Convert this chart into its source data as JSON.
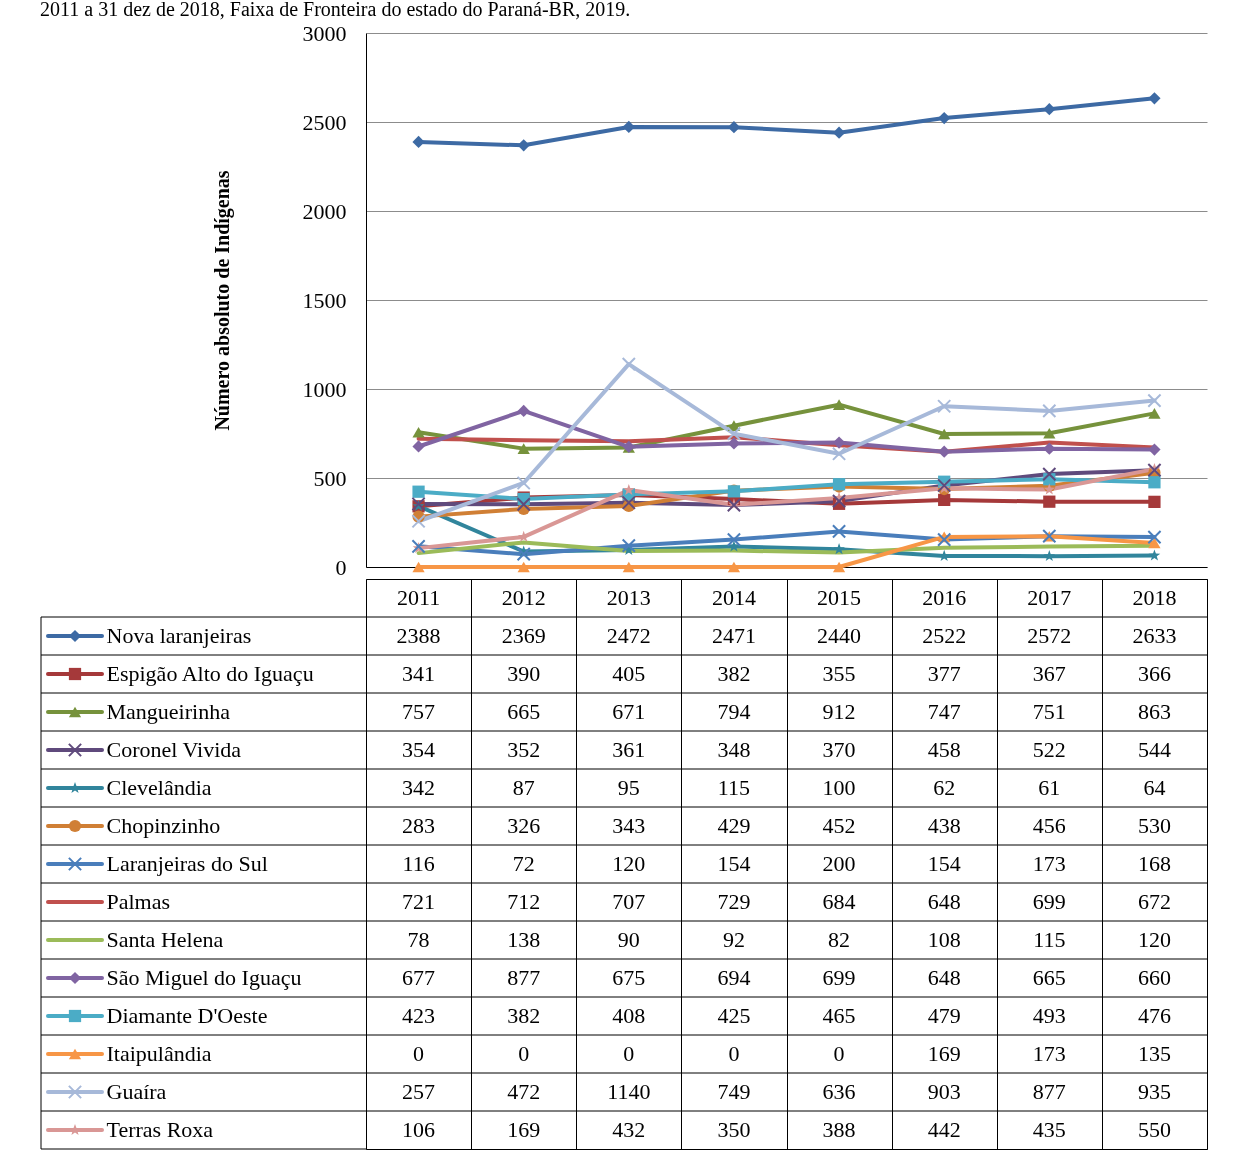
{
  "chart_data": {
    "type": "line",
    "title": "2011 a 31 dez de 2018, Faixa de Fronteira do estado do Paraná-BR, 2019.",
    "ylabel": "Número absoluto de Indígenas",
    "categories": [
      "2011",
      "2012",
      "2013",
      "2014",
      "2015",
      "2016",
      "2017",
      "2018"
    ],
    "ylim": [
      0,
      3000
    ],
    "yticks": [
      0,
      500,
      1000,
      1500,
      2000,
      2500,
      3000
    ],
    "grid": "y",
    "legend": "bottom",
    "data_labels": true,
    "series": [
      {
        "name": "Nova laranjeiras",
        "color": "#3d6aa4",
        "marker": "diamond",
        "values": [
          2388,
          2369,
          2472,
          2471,
          2440,
          2522,
          2572,
          2633
        ]
      },
      {
        "name": "Espigão Alto do Iguaçu",
        "color": "#a5393a",
        "marker": "square",
        "values": [
          341,
          390,
          405,
          382,
          355,
          377,
          367,
          366
        ]
      },
      {
        "name": "Mangueirinha",
        "color": "#76923c",
        "marker": "triangle",
        "values": [
          757,
          665,
          671,
          794,
          912,
          747,
          751,
          863
        ]
      },
      {
        "name": "Coronel Vivida",
        "color": "#5f4a7c",
        "marker": "cross",
        "values": [
          354,
          352,
          361,
          348,
          370,
          458,
          522,
          544
        ]
      },
      {
        "name": "Clevelândia",
        "color": "#31859c",
        "marker": "star",
        "values": [
          342,
          87,
          95,
          115,
          100,
          62,
          61,
          64
        ]
      },
      {
        "name": "Chopinzinho",
        "color": "#d07f35",
        "marker": "circle",
        "values": [
          283,
          326,
          343,
          429,
          452,
          438,
          456,
          530
        ]
      },
      {
        "name": "Laranjeiras do Sul",
        "color": "#4a7ebb",
        "marker": "cross",
        "values": [
          116,
          72,
          120,
          154,
          200,
          154,
          173,
          168
        ]
      },
      {
        "name": "Palmas",
        "color": "#c0504d",
        "marker": "none",
        "values": [
          721,
          712,
          707,
          729,
          684,
          648,
          699,
          672
        ]
      },
      {
        "name": "Santa Helena",
        "color": "#9bbb59",
        "marker": "none",
        "values": [
          78,
          138,
          90,
          92,
          82,
          108,
          115,
          120
        ]
      },
      {
        "name": "São Miguel do Iguaçu",
        "color": "#8064a2",
        "marker": "diamond",
        "values": [
          677,
          877,
          675,
          694,
          699,
          648,
          665,
          660
        ]
      },
      {
        "name": "Diamante D'Oeste",
        "color": "#4bacc6",
        "marker": "square",
        "values": [
          423,
          382,
          408,
          425,
          465,
          479,
          493,
          476
        ]
      },
      {
        "name": "Itaipulândia",
        "color": "#f79646",
        "marker": "triangle",
        "values": [
          0,
          0,
          0,
          0,
          0,
          169,
          173,
          135
        ]
      },
      {
        "name": "Guaíra",
        "color": "#a7b9d9",
        "marker": "cross",
        "values": [
          257,
          472,
          1140,
          749,
          636,
          903,
          877,
          935
        ]
      },
      {
        "name": "Terras Roxa",
        "color": "#d99795",
        "marker": "star",
        "values": [
          106,
          169,
          432,
          350,
          388,
          442,
          435,
          550
        ]
      }
    ]
  }
}
